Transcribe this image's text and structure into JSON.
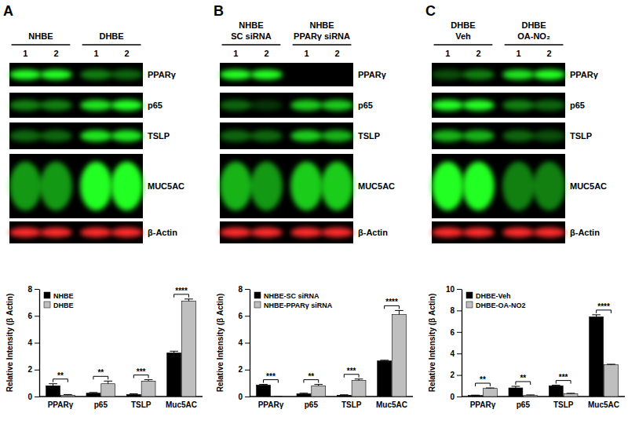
{
  "chart_data": [
    {
      "type": "bar",
      "panel_label": "A",
      "blot_groups": [
        [
          "NHBE"
        ],
        [
          "DHBE"
        ]
      ],
      "blot_lanes": [
        "1",
        "2",
        "1",
        "2"
      ],
      "blot_rows": [
        "PPARγ",
        "p65",
        "TSLP",
        "MUC5AC",
        "β-Actin"
      ],
      "y_label": "Relative Intensity (β Actin)",
      "categories": [
        "PPARγ",
        "p65",
        "TSLP",
        "Muc5AC"
      ],
      "series": [
        {
          "name": "NHBE",
          "color": "#000000",
          "values": [
            0.8,
            0.25,
            0.15,
            3.25
          ],
          "errors": [
            0.15,
            0.05,
            0.05,
            0.12
          ]
        },
        {
          "name": "DHBE",
          "color": "#bfbfbf",
          "values": [
            0.1,
            0.95,
            1.15,
            7.1
          ],
          "errors": [
            0.05,
            0.2,
            0.1,
            0.15
          ]
        }
      ],
      "significance": [
        "**",
        "**",
        "***",
        "****"
      ],
      "ylim": [
        0,
        8
      ],
      "yticks": [
        0,
        2,
        4,
        6,
        8
      ],
      "legend": "upper left",
      "grid": false
    },
    {
      "type": "bar",
      "panel_label": "B",
      "blot_groups": [
        [
          "NHBE",
          "SC siRNA"
        ],
        [
          "NHBE",
          "PPARγ siRNA"
        ]
      ],
      "blot_lanes": [
        "1",
        "2",
        "1",
        "2"
      ],
      "blot_rows": [
        "PPARγ",
        "p65",
        "TSLP",
        "MUC5AC",
        "β-Actin"
      ],
      "y_label": "Relative Intensity (β Actin)",
      "categories": [
        "PPARγ",
        "p65",
        "TSLP",
        "Muc5AC"
      ],
      "series": [
        {
          "name": "NHBE-SC siRNA",
          "color": "#000000",
          "values": [
            0.85,
            0.2,
            0.1,
            2.65
          ],
          "errors": [
            0.05,
            0.05,
            0.03,
            0.05
          ]
        },
        {
          "name": "NHBE-PPARγ siRNA",
          "color": "#bfbfbf",
          "values": [
            0,
            0.8,
            1.2,
            6.1
          ],
          "errors": [
            0,
            0.1,
            0.1,
            0.3
          ]
        }
      ],
      "significance": [
        "***",
        "**",
        "***",
        "****"
      ],
      "ylim": [
        0,
        8
      ],
      "yticks": [
        0,
        2,
        4,
        6,
        8
      ],
      "legend": "upper left",
      "grid": false
    },
    {
      "type": "bar",
      "panel_label": "C",
      "blot_groups": [
        [
          "DHBE",
          "Veh"
        ],
        [
          "DHBE",
          "OA-NO₂"
        ]
      ],
      "blot_lanes": [
        "1",
        "2",
        "1",
        "2"
      ],
      "blot_rows": [
        "PPARγ",
        "p65",
        "TSLP",
        "MUC5AC",
        "β-Actin"
      ],
      "y_label": "Relative Intensity (β Actin)",
      "categories": [
        "PPARγ",
        "p65",
        "TSLP",
        "Muc5AC"
      ],
      "series": [
        {
          "name": "DHBE-Veh",
          "color": "#000000",
          "values": [
            0.1,
            0.8,
            1.0,
            7.4
          ],
          "errors": [
            0.03,
            0.15,
            0.05,
            0.2
          ]
        },
        {
          "name": "DHBE-OA-NO2",
          "color": "#bfbfbf",
          "values": [
            0.75,
            0.1,
            0.25,
            2.95
          ],
          "errors": [
            0.05,
            0.05,
            0.05,
            0.05
          ]
        }
      ],
      "significance": [
        "**",
        "**",
        "***",
        "****"
      ],
      "ylim": [
        0,
        10
      ],
      "yticks": [
        0,
        2,
        4,
        6,
        8,
        10
      ],
      "legend": "upper left",
      "grid": false
    }
  ]
}
